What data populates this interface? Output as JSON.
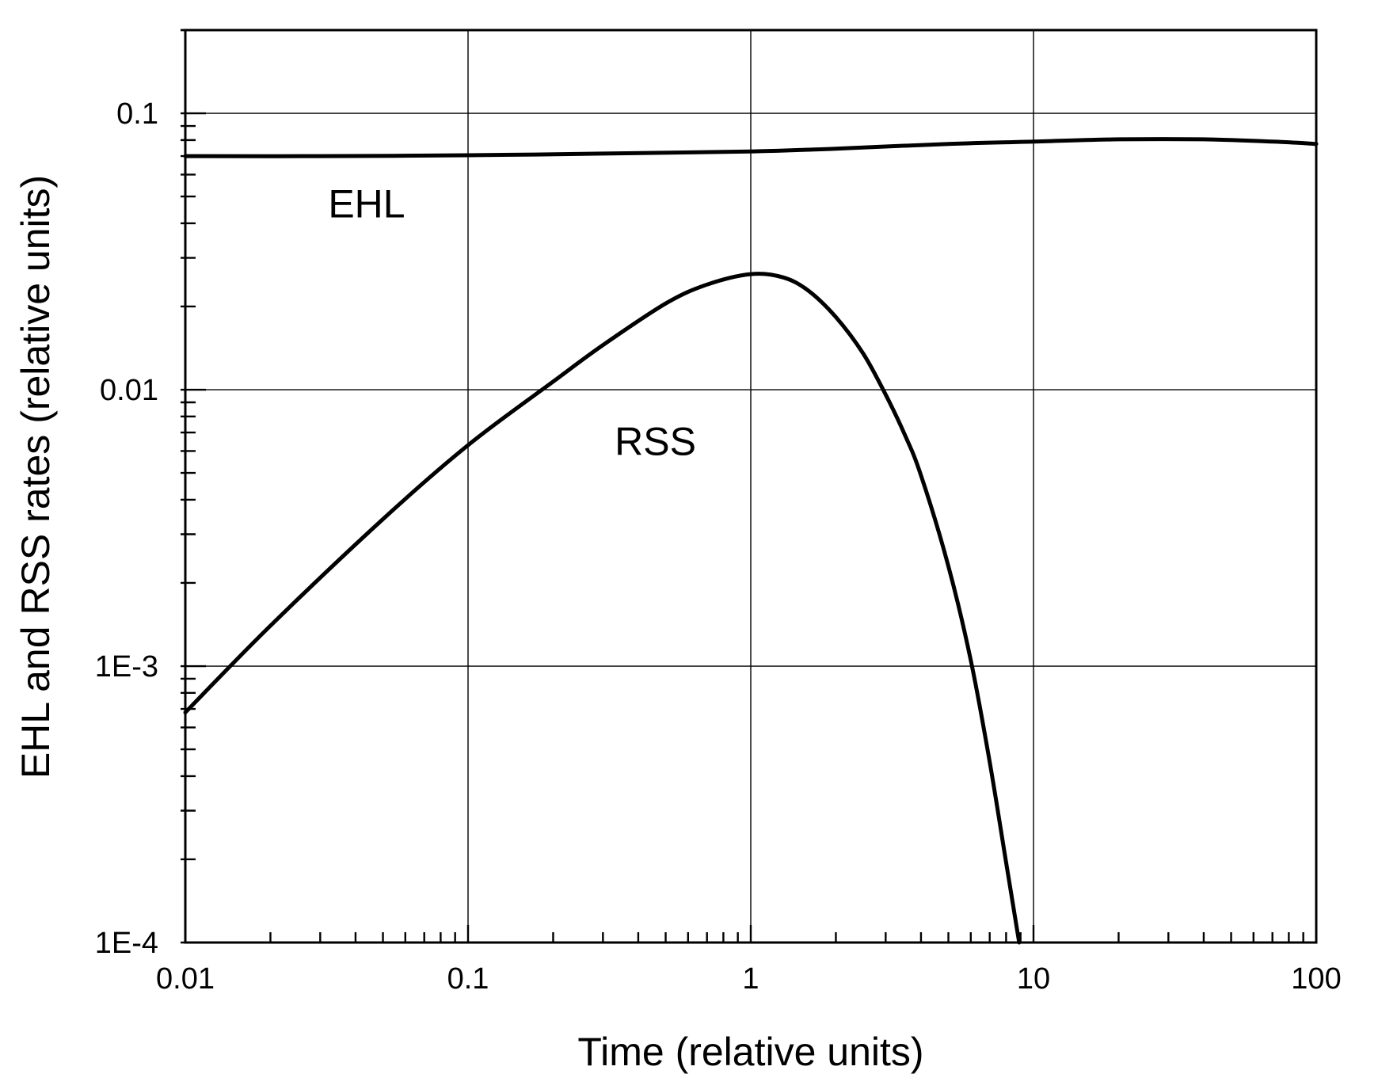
{
  "chart_data": {
    "type": "line",
    "title": "",
    "xlabel": "Time (relative units)",
    "ylabel": "EHL and RSS rates (relative units)",
    "xscale": "log",
    "yscale": "log",
    "xlim": [
      0.01,
      100
    ],
    "ylim": [
      0.0001,
      0.2
    ],
    "grid": true,
    "legend": "none",
    "x_ticks": [
      {
        "value": 0.01,
        "label": "0.01"
      },
      {
        "value": 0.1,
        "label": "0.1"
      },
      {
        "value": 1,
        "label": "1"
      },
      {
        "value": 10,
        "label": "10"
      },
      {
        "value": 100,
        "label": "100"
      }
    ],
    "y_ticks": [
      {
        "value": 0.0001,
        "label": "1E-4"
      },
      {
        "value": 0.001,
        "label": "1E-3"
      },
      {
        "value": 0.01,
        "label": "0.01"
      },
      {
        "value": 0.1,
        "label": "0.1"
      }
    ],
    "series": [
      {
        "name": "EHL",
        "label_position": {
          "x": 0.032,
          "y": 0.042
        },
        "points": [
          [
            0.01,
            0.07
          ],
          [
            0.03,
            0.07
          ],
          [
            0.1,
            0.0705
          ],
          [
            0.3,
            0.0715
          ],
          [
            1,
            0.0728
          ],
          [
            2,
            0.0745
          ],
          [
            5,
            0.0775
          ],
          [
            10,
            0.079
          ],
          [
            20,
            0.0805
          ],
          [
            40,
            0.0805
          ],
          [
            70,
            0.079
          ],
          [
            100,
            0.0775
          ]
        ]
      },
      {
        "name": "RSS",
        "label_position": {
          "x": 0.33,
          "y": 0.0058
        },
        "points": [
          [
            0.01,
            0.00068
          ],
          [
            0.02,
            0.0014
          ],
          [
            0.05,
            0.0034
          ],
          [
            0.1,
            0.0063
          ],
          [
            0.2,
            0.0107
          ],
          [
            0.3,
            0.0145
          ],
          [
            0.5,
            0.0205
          ],
          [
            0.7,
            0.024
          ],
          [
            1,
            0.0262
          ],
          [
            1.3,
            0.0255
          ],
          [
            1.6,
            0.0228
          ],
          [
            2,
            0.0183
          ],
          [
            2.5,
            0.0135
          ],
          [
            3,
            0.0096
          ],
          [
            3.5,
            0.0069
          ],
          [
            4,
            0.0049
          ],
          [
            5,
            0.0023
          ],
          [
            6,
            0.00105
          ],
          [
            7,
            0.00045
          ],
          [
            8,
            0.000195
          ],
          [
            8.9,
            0.0001
          ]
        ]
      }
    ]
  }
}
